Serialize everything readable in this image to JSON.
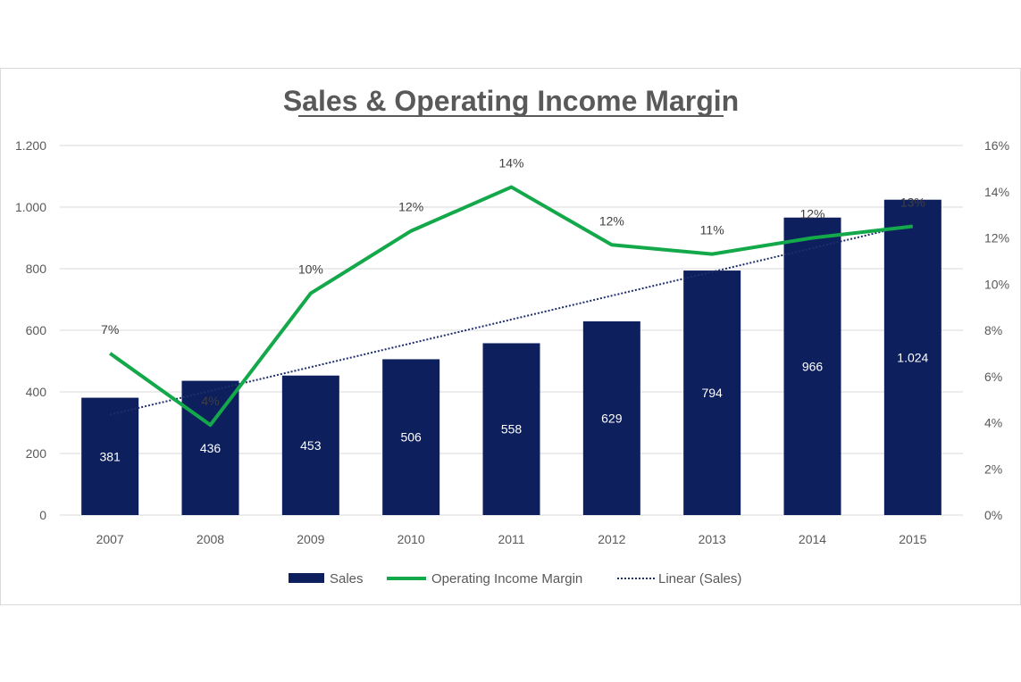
{
  "chart_data": {
    "type": "bar",
    "title": "Sales & Operating Income Margin",
    "categories": [
      "2007",
      "2008",
      "2009",
      "2010",
      "2011",
      "2012",
      "2013",
      "2014",
      "2015"
    ],
    "series": [
      {
        "name": "Sales",
        "type": "bar",
        "axis": "left",
        "values": [
          381,
          436,
          453,
          506,
          558,
          629,
          794,
          966,
          1024
        ],
        "labels": [
          "381",
          "436",
          "453",
          "506",
          "558",
          "629",
          "794",
          "966",
          "1.024"
        ]
      },
      {
        "name": "Operating Income Margin",
        "type": "line",
        "axis": "right",
        "values": [
          7.0,
          3.9,
          9.6,
          12.3,
          14.2,
          11.7,
          11.3,
          12.0,
          12.5
        ],
        "labels": [
          "7%",
          "4%",
          "10%",
          "12%",
          "14%",
          "12%",
          "11%",
          "12%",
          "13%"
        ]
      },
      {
        "name": "Linear (Sales)",
        "type": "trendline",
        "axis": "left",
        "start": 326,
        "end": 944
      }
    ],
    "y_left": {
      "ylim": [
        0,
        1200
      ],
      "ticks": [
        0,
        200,
        400,
        600,
        800,
        1000,
        1200
      ],
      "tick_labels": [
        "0",
        "200",
        "400",
        "600",
        "800",
        "1.000",
        "1.200"
      ]
    },
    "y_right": {
      "ylim": [
        0,
        16
      ],
      "ticks": [
        0,
        2,
        4,
        6,
        8,
        10,
        12,
        14,
        16
      ],
      "tick_labels": [
        "0%",
        "2%",
        "4%",
        "6%",
        "8%",
        "10%",
        "12%",
        "14%",
        "16%"
      ]
    },
    "grid": true,
    "legend": "bottom",
    "colors": {
      "bars": "#0d1f5c",
      "line": "#13a84a",
      "trend": "#1f2f6b",
      "grid": "#d9d9d9",
      "text": "#595959"
    }
  }
}
